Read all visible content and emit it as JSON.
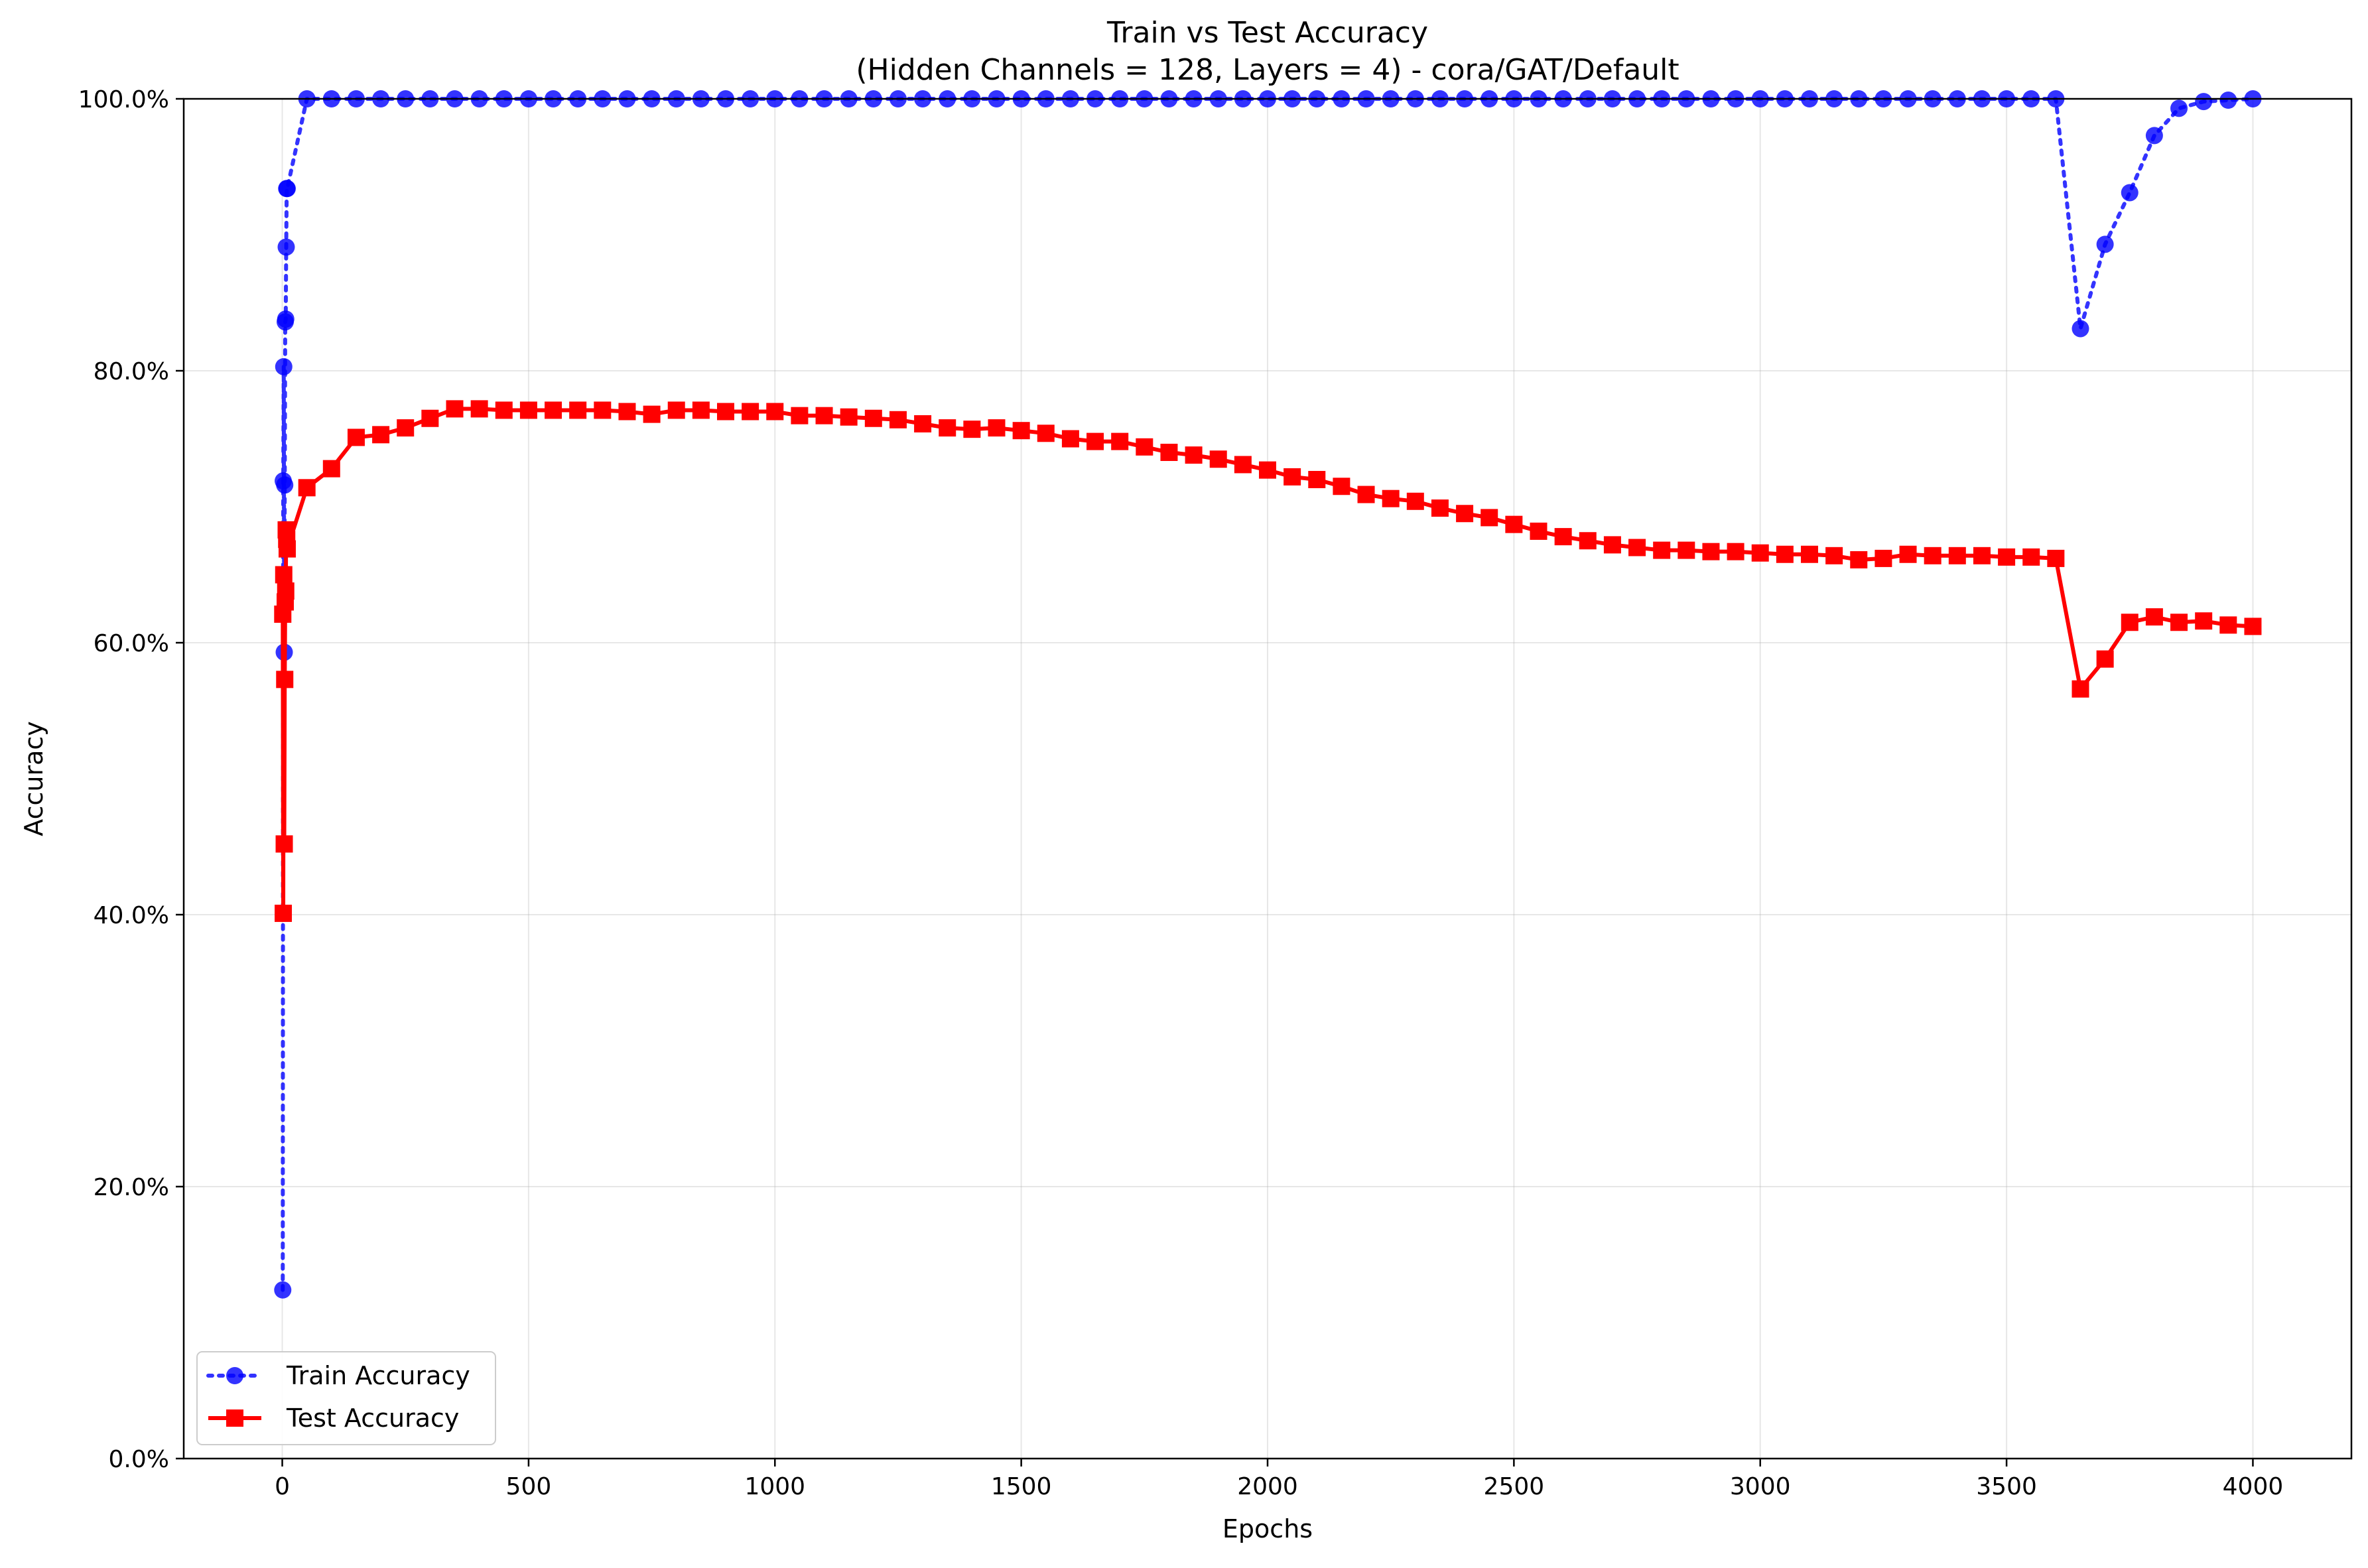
{
  "chart_data": {
    "type": "line",
    "title": "Train vs Test Accuracy",
    "subtitle": "(Hidden Channels = 128, Layers = 4) - cora/GAT/Default",
    "xlabel": "Epochs",
    "ylabel": "Accuracy",
    "xlim": [
      -200,
      4200
    ],
    "ylim": [
      0,
      100
    ],
    "x_ticks": [
      0,
      500,
      1000,
      1500,
      2000,
      2500,
      3000,
      3500,
      4000
    ],
    "x_tick_labels": [
      "0",
      "500",
      "1000",
      "1500",
      "2000",
      "2500",
      "3000",
      "3500",
      "4000"
    ],
    "y_ticks": [
      0,
      20,
      40,
      60,
      80,
      100
    ],
    "y_tick_labels": [
      "0.0%",
      "20.0%",
      "40.0%",
      "60.0%",
      "80.0%",
      "100.0%"
    ],
    "grid": true,
    "legend_position": "lower-left",
    "series": [
      {
        "name": "Train Accuracy",
        "color": "#0000ff",
        "line_style": "dotted",
        "marker": "circle",
        "x": [
          1,
          2,
          3,
          4,
          5,
          6,
          7,
          8,
          9,
          10,
          50,
          100,
          150,
          200,
          250,
          300,
          350,
          400,
          450,
          500,
          550,
          600,
          650,
          700,
          750,
          800,
          850,
          900,
          950,
          1000,
          1050,
          1100,
          1150,
          1200,
          1250,
          1300,
          1350,
          1400,
          1450,
          1500,
          1550,
          1600,
          1650,
          1700,
          1750,
          1800,
          1850,
          1900,
          1950,
          2000,
          2050,
          2100,
          2150,
          2200,
          2250,
          2300,
          2350,
          2400,
          2450,
          2500,
          2550,
          2600,
          2650,
          2700,
          2750,
          2800,
          2850,
          2900,
          2950,
          3000,
          3050,
          3100,
          3150,
          3200,
          3250,
          3300,
          3350,
          3400,
          3450,
          3500,
          3550,
          3600,
          3650,
          3700,
          3750,
          3800,
          3850,
          3900,
          3950,
          4000
        ],
        "y": [
          12.4,
          71.9,
          80.3,
          59.3,
          71.6,
          83.6,
          83.8,
          89.1,
          93.4,
          93.4,
          100,
          100,
          100,
          100,
          100,
          100,
          100,
          100,
          100,
          100,
          100,
          100,
          100,
          100,
          100,
          100,
          100,
          100,
          100,
          100,
          100,
          100,
          100,
          100,
          100,
          100,
          100,
          100,
          100,
          100,
          100,
          100,
          100,
          100,
          100,
          100,
          100,
          100,
          100,
          100,
          100,
          100,
          100,
          100,
          100,
          100,
          100,
          100,
          100,
          100,
          100,
          100,
          100,
          100,
          100,
          100,
          100,
          100,
          100,
          100,
          100,
          100,
          100,
          100,
          100,
          100,
          100,
          100,
          100,
          100,
          100,
          100,
          83.1,
          89.3,
          93.1,
          97.3,
          99.3,
          99.8,
          99.9,
          100
        ]
      },
      {
        "name": "Test Accuracy",
        "color": "#ff0000",
        "line_style": "solid",
        "marker": "square",
        "x": [
          1,
          2,
          3,
          4,
          5,
          6,
          7,
          8,
          9,
          10,
          50,
          100,
          150,
          200,
          250,
          300,
          350,
          400,
          450,
          500,
          550,
          600,
          650,
          700,
          750,
          800,
          850,
          900,
          950,
          1000,
          1050,
          1100,
          1150,
          1200,
          1250,
          1300,
          1350,
          1400,
          1450,
          1500,
          1550,
          1600,
          1650,
          1700,
          1750,
          1800,
          1850,
          1900,
          1950,
          2000,
          2050,
          2100,
          2150,
          2200,
          2250,
          2300,
          2350,
          2400,
          2450,
          2500,
          2550,
          2600,
          2650,
          2700,
          2750,
          2800,
          2850,
          2900,
          2950,
          3000,
          3050,
          3100,
          3150,
          3200,
          3250,
          3300,
          3350,
          3400,
          3450,
          3500,
          3550,
          3600,
          3650,
          3700,
          3750,
          3800,
          3850,
          3900,
          3950,
          4000
        ],
        "y": [
          62.1,
          40.1,
          65.0,
          45.2,
          57.3,
          63.0,
          63.8,
          68.3,
          67.6,
          66.9,
          71.4,
          72.8,
          75.1,
          75.3,
          75.8,
          76.5,
          77.2,
          77.2,
          77.1,
          77.1,
          77.1,
          77.1,
          77.1,
          77.0,
          76.8,
          77.1,
          77.1,
          77.0,
          77.0,
          77.0,
          76.7,
          76.7,
          76.6,
          76.5,
          76.4,
          76.1,
          75.8,
          75.7,
          75.8,
          75.6,
          75.4,
          75.0,
          74.8,
          74.8,
          74.4,
          74.0,
          73.8,
          73.5,
          73.1,
          72.7,
          72.2,
          72.0,
          71.5,
          70.9,
          70.6,
          70.4,
          69.9,
          69.5,
          69.2,
          68.7,
          68.2,
          67.8,
          67.5,
          67.2,
          67.0,
          66.8,
          66.8,
          66.7,
          66.7,
          66.6,
          66.5,
          66.5,
          66.4,
          66.1,
          66.2,
          66.5,
          66.4,
          66.4,
          66.4,
          66.3,
          66.3,
          66.2,
          56.6,
          58.8,
          61.5,
          61.9,
          61.5,
          61.6,
          61.3,
          61.2
        ]
      }
    ]
  }
}
